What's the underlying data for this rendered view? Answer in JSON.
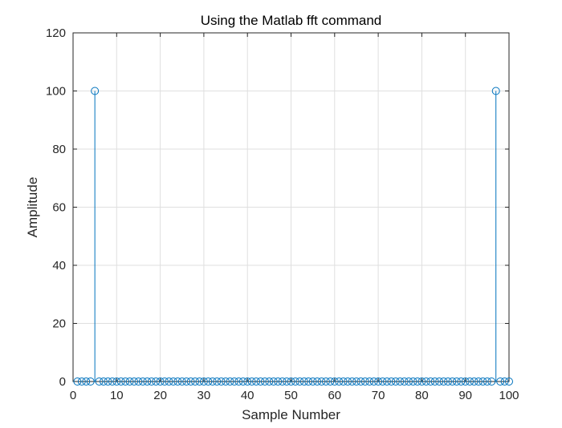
{
  "chart_data": {
    "type": "stem",
    "title": "Using the Matlab fft command",
    "xlabel": "Sample Number",
    "ylabel": "Amplitude",
    "xlim": [
      0,
      100
    ],
    "ylim": [
      0,
      120
    ],
    "xticks": [
      0,
      10,
      20,
      30,
      40,
      50,
      60,
      70,
      80,
      90,
      100
    ],
    "yticks": [
      0,
      20,
      40,
      60,
      80,
      100,
      120
    ],
    "grid": true,
    "colors": {
      "series": "#0072bd",
      "grid": "#dfdfdf",
      "axis": "#262626"
    },
    "series": [
      {
        "x": [
          1,
          2,
          3,
          4,
          5,
          6,
          7,
          8,
          9,
          10,
          11,
          12,
          13,
          14,
          15,
          16,
          17,
          18,
          19,
          20,
          21,
          22,
          23,
          24,
          25,
          26,
          27,
          28,
          29,
          30,
          31,
          32,
          33,
          34,
          35,
          36,
          37,
          38,
          39,
          40,
          41,
          42,
          43,
          44,
          45,
          46,
          47,
          48,
          49,
          50,
          51,
          52,
          53,
          54,
          55,
          56,
          57,
          58,
          59,
          60,
          61,
          62,
          63,
          64,
          65,
          66,
          67,
          68,
          69,
          70,
          71,
          72,
          73,
          74,
          75,
          76,
          77,
          78,
          79,
          80,
          81,
          82,
          83,
          84,
          85,
          86,
          87,
          88,
          89,
          90,
          91,
          92,
          93,
          94,
          95,
          96,
          97,
          98,
          99,
          100
        ],
        "y": [
          0,
          0,
          0,
          0,
          100,
          0,
          0,
          0,
          0,
          0,
          0,
          0,
          0,
          0,
          0,
          0,
          0,
          0,
          0,
          0,
          0,
          0,
          0,
          0,
          0,
          0,
          0,
          0,
          0,
          0,
          0,
          0,
          0,
          0,
          0,
          0,
          0,
          0,
          0,
          0,
          0,
          0,
          0,
          0,
          0,
          0,
          0,
          0,
          0,
          0,
          0,
          0,
          0,
          0,
          0,
          0,
          0,
          0,
          0,
          0,
          0,
          0,
          0,
          0,
          0,
          0,
          0,
          0,
          0,
          0,
          0,
          0,
          0,
          0,
          0,
          0,
          0,
          0,
          0,
          0,
          0,
          0,
          0,
          0,
          0,
          0,
          0,
          0,
          0,
          0,
          0,
          0,
          0,
          0,
          0,
          0,
          100,
          0,
          0,
          0
        ]
      }
    ]
  }
}
